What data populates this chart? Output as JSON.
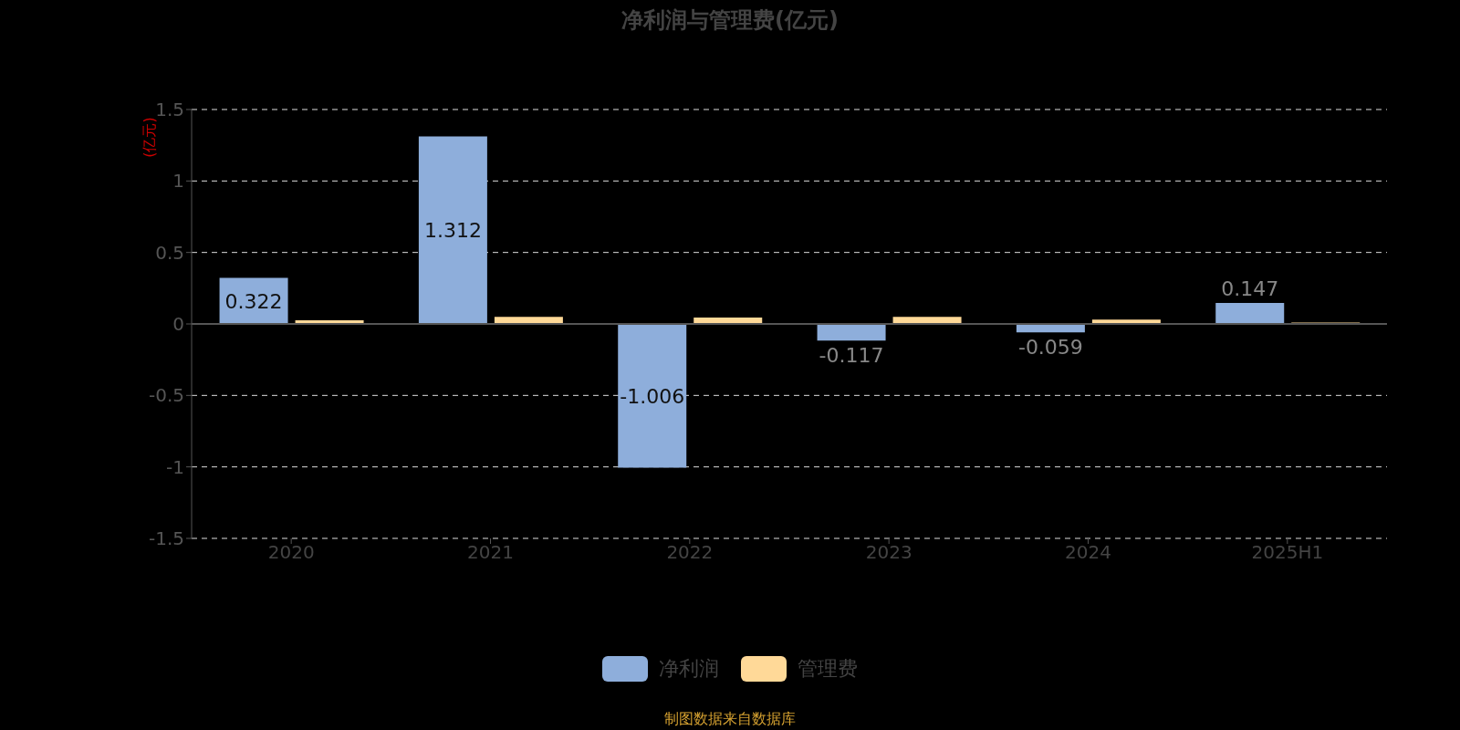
{
  "chart_data": {
    "type": "bar",
    "title": "净利润与管理费(亿元)",
    "ylabel": "(亿元)",
    "categories": [
      "2020",
      "2021",
      "2022",
      "2023",
      "2024",
      "2025H1"
    ],
    "series": [
      {
        "name": "净利润",
        "color": "#8eaedb",
        "values": [
          0.322,
          1.312,
          -1.006,
          -0.117,
          -0.059,
          0.147
        ],
        "value_labels": [
          "0.322",
          "1.312",
          "-1.006",
          "-0.117",
          "-0.059",
          "0.147"
        ]
      },
      {
        "name": "管理费",
        "color": "#ffd998",
        "values": [
          0.025,
          0.05,
          0.045,
          0.05,
          0.03,
          0.01
        ]
      }
    ],
    "ylim": [
      -1.5,
      1.5
    ],
    "yticks": [
      -1.5,
      -1,
      -0.5,
      0,
      0.5,
      1,
      1.5
    ],
    "grid": "y",
    "legend": "bottom",
    "annotations": [
      "制图数据来自数据库"
    ]
  }
}
